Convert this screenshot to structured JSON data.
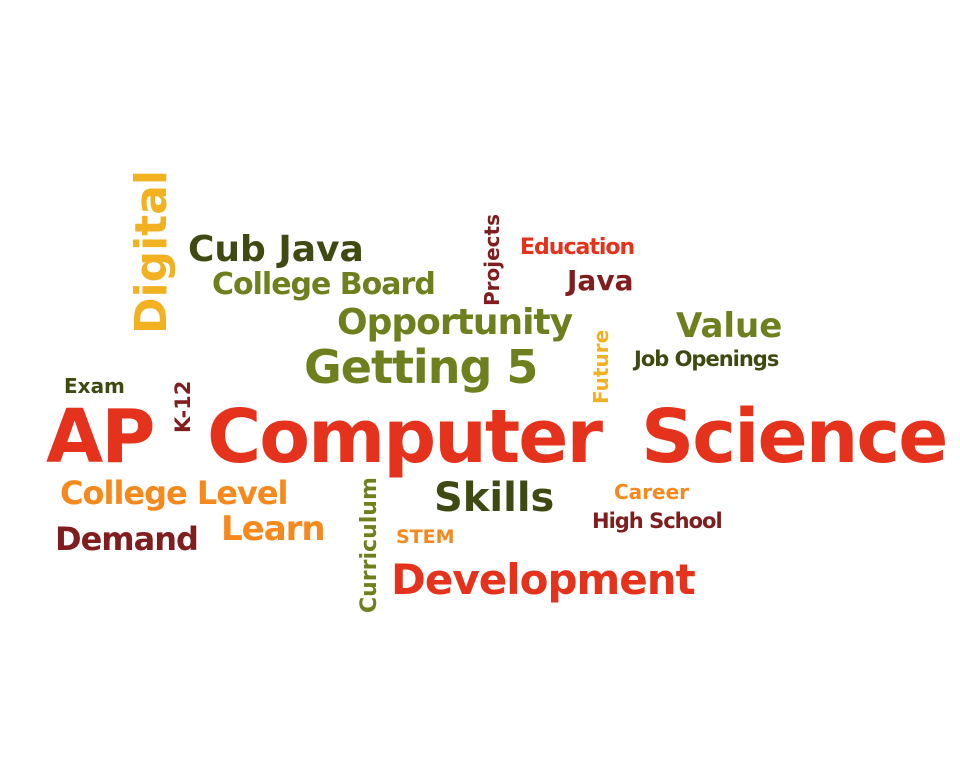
{
  "colors": {
    "red": "#e4321c",
    "orange": "#f5891d",
    "yellow": "#f2b120",
    "olive": "#6e7f1e",
    "dark_olive": "#3f4a12",
    "maroon": "#7f1d1f",
    "background": "#ffffff"
  },
  "words": {
    "ap": "AP",
    "computer": "Computer",
    "science": "Science",
    "digital": "Digital",
    "cub_java": "Cub Java",
    "college_board": "College Board",
    "opportunity": "Opportunity",
    "getting_5": "Getting 5",
    "projects": "Projects",
    "education": "Education",
    "java": "Java",
    "future": "Future",
    "value": "Value",
    "job_openings": "Job Openings",
    "exam": "Exam",
    "k12": "K-12",
    "college_level": "College Level",
    "demand": "Demand",
    "learn": "Learn",
    "curriculum": "Curriculum",
    "skills": "Skills",
    "stem": "STEM",
    "career": "Career",
    "high_school": "High School",
    "development": "Development"
  }
}
